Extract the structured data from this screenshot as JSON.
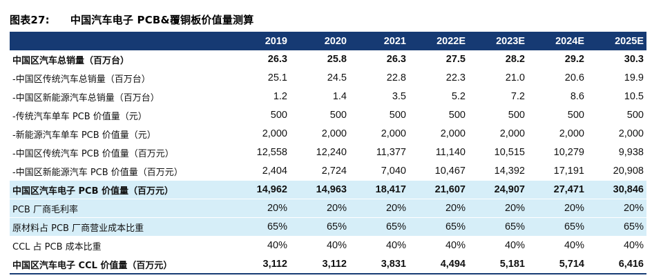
{
  "title": {
    "figure_no": "图表27:",
    "text": "中国汽车电子 PCB&覆铜板价值量测算"
  },
  "table": {
    "headers": [
      "",
      "2019",
      "2020",
      "2021",
      "2022E",
      "2023E",
      "2024E",
      "2025E"
    ],
    "rows": [
      {
        "label": "中国区汽车总销量（百万台）",
        "values": [
          "26.3",
          "25.8",
          "26.3",
          "27.5",
          "28.2",
          "29.2",
          "30.3"
        ],
        "bold": true,
        "highlight": false
      },
      {
        "label": "-中国区传统汽车总销量（百万台）",
        "values": [
          "25.1",
          "24.5",
          "22.8",
          "22.3",
          "21.0",
          "20.6",
          "19.9"
        ],
        "bold": false,
        "highlight": false
      },
      {
        "label": "-中国区新能源汽车总销量（百万台）",
        "values": [
          "1.2",
          "1.4",
          "3.5",
          "5.2",
          "7.2",
          "8.6",
          "10.5"
        ],
        "bold": false,
        "highlight": false
      },
      {
        "label": "-传统汽车单车 PCB 价值量（元）",
        "values": [
          "500",
          "500",
          "500",
          "500",
          "500",
          "500",
          "500"
        ],
        "bold": false,
        "highlight": false
      },
      {
        "label": "-新能源汽车单车 PCB 价值量（元）",
        "values": [
          "2,000",
          "2,000",
          "2,000",
          "2,000",
          "2,000",
          "2,000",
          "2,000"
        ],
        "bold": false,
        "highlight": false
      },
      {
        "label": "-中国区传统汽车 PCB 价值量（百万元）",
        "values": [
          "12,558",
          "12,240",
          "11,377",
          "11,140",
          "10,515",
          "10,279",
          "9,938"
        ],
        "bold": false,
        "highlight": false
      },
      {
        "label": "-中国区新能源汽车 PCB 价值量（百万元）",
        "values": [
          "2,404",
          "2,724",
          "7,040",
          "10,467",
          "14,392",
          "17,191",
          "20,908"
        ],
        "bold": false,
        "highlight": false
      },
      {
        "label": "中国区汽车电子 PCB 价值量（百万元）",
        "values": [
          "14,962",
          "14,963",
          "18,417",
          "21,607",
          "24,907",
          "27,471",
          "30,846"
        ],
        "bold": true,
        "highlight": true
      },
      {
        "label": "PCB 厂商毛利率",
        "values": [
          "20%",
          "20%",
          "20%",
          "20%",
          "20%",
          "20%",
          "20%"
        ],
        "bold": false,
        "highlight": true
      },
      {
        "label": "原材料占 PCB 厂商营业成本比重",
        "values": [
          "65%",
          "65%",
          "65%",
          "65%",
          "65%",
          "65%",
          "65%"
        ],
        "bold": false,
        "highlight": true
      },
      {
        "label": "CCL 占 PCB 成本比重",
        "values": [
          "40%",
          "40%",
          "40%",
          "40%",
          "40%",
          "40%",
          "40%"
        ],
        "bold": false,
        "highlight": false
      },
      {
        "label": "中国区汽车电子 CCL 价值量（百万元）",
        "values": [
          "3,112",
          "3,112",
          "3,831",
          "4,494",
          "5,181",
          "5,714",
          "6,416"
        ],
        "bold": true,
        "highlight": false
      }
    ]
  },
  "colors": {
    "header_bg": "#163a73",
    "highlight_bg": "#d6eef8"
  }
}
